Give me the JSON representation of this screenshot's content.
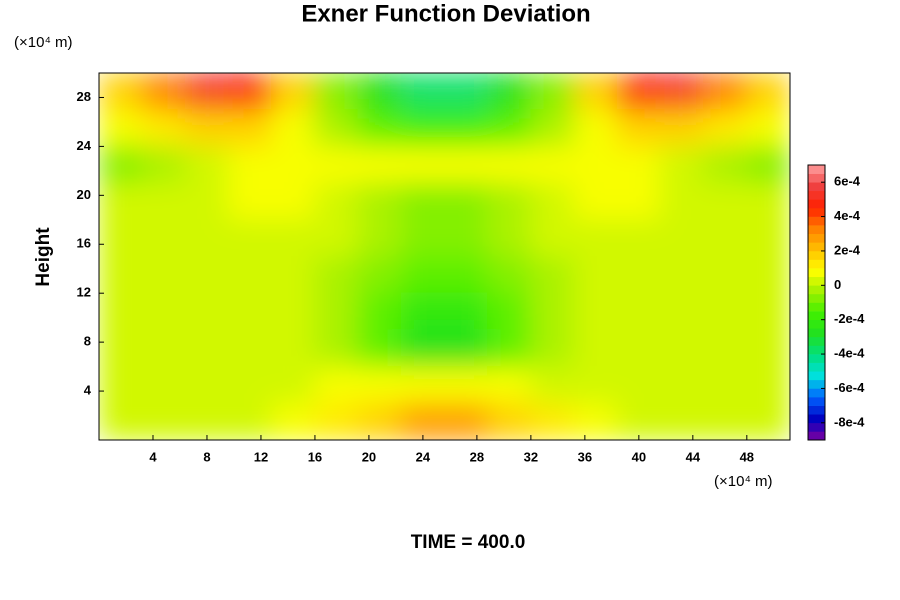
{
  "chart_data": {
    "type": "contour",
    "title": "Exner Function Deviation",
    "y_unit": "(×10⁴ m)",
    "x_unit": "(×10⁴ m)",
    "ylabel": "Height",
    "footer": "TIME = 400.0",
    "xlim": [
      0,
      51.2
    ],
    "ylim": [
      0,
      30
    ],
    "xticks": [
      4,
      8,
      12,
      16,
      20,
      24,
      28,
      32,
      36,
      40,
      44,
      48
    ],
    "yticks": [
      4,
      8,
      12,
      16,
      20,
      24,
      28
    ],
    "x": [
      1.6,
      4.8,
      8,
      11.2,
      14.4,
      17.6,
      20.8,
      24,
      27.2,
      30.4,
      33.6,
      36.8,
      40,
      43.2,
      46.4,
      49.6
    ],
    "y": [
      28.5,
      25.5,
      22.5,
      19.5,
      16.5,
      13.5,
      10.5,
      7.5,
      4.5,
      1.5
    ],
    "z": [
      [
        0.00015,
        0.0003,
        0.0005,
        0.00045,
        0.00015,
        -0.0001,
        -0.0003,
        -0.0004,
        -0.0004,
        -0.0003,
        -0.0001,
        0.00015,
        0.00045,
        0.0005,
        0.0003,
        0.00015
      ],
      [
        5e-05,
        0.0001,
        0.00015,
        0.00015,
        5e-05,
        -5e-05,
        -0.00015,
        -0.0002,
        -0.0002,
        -0.00015,
        -5e-05,
        5e-05,
        0.00015,
        0.00015,
        0.0001,
        5e-05
      ],
      [
        -0.0001,
        -5e-05,
        0,
        5e-05,
        5e-05,
        5e-05,
        8e-05,
        8e-05,
        8e-05,
        8e-05,
        5e-05,
        5e-05,
        5e-05,
        0,
        -5e-05,
        -0.0001
      ],
      [
        0,
        0,
        3e-05,
        5e-05,
        5e-05,
        0,
        -5e-05,
        -8e-05,
        -8e-05,
        -5e-05,
        0,
        5e-05,
        5e-05,
        3e-05,
        0,
        0
      ],
      [
        0,
        0,
        0,
        0,
        0,
        0,
        -3e-05,
        -6e-05,
        -6e-05,
        -3e-05,
        0,
        0,
        0,
        0,
        0,
        0
      ],
      [
        0,
        0,
        0,
        0,
        0,
        -3e-05,
        -8e-05,
        -0.00013,
        -0.00013,
        -8e-05,
        -3e-05,
        0,
        0,
        0,
        0,
        0
      ],
      [
        0,
        0,
        0,
        0,
        0,
        -5e-05,
        -0.00015,
        -0.00025,
        -0.00025,
        -0.00015,
        -5e-05,
        0,
        0,
        0,
        0,
        0
      ],
      [
        0,
        0,
        0,
        0,
        0,
        -5e-05,
        -0.00015,
        -0.0003,
        -0.0003,
        -0.00015,
        -5e-05,
        0,
        0,
        0,
        0,
        0
      ],
      [
        0,
        0,
        0,
        0,
        3e-05,
        5e-05,
        5e-05,
        5e-05,
        5e-05,
        5e-05,
        3e-05,
        0,
        0,
        0,
        0,
        0
      ],
      [
        0,
        0,
        0,
        3e-05,
        5e-05,
        0.0001,
        0.00015,
        0.00025,
        0.00025,
        0.00015,
        0.0001,
        5e-05,
        3e-05,
        0,
        0,
        0
      ]
    ],
    "clim": [
      -0.0009,
      0.0007
    ],
    "cticks": [
      {
        "value": 0.0006,
        "label": "6e-4"
      },
      {
        "value": 0.0004,
        "label": "4e-4"
      },
      {
        "value": 0.0002,
        "label": "2e-4"
      },
      0,
      {
        "value": -0.0002,
        "label": "-2e-4"
      },
      {
        "value": -0.0004,
        "label": "-4e-4"
      },
      {
        "value": -0.0006,
        "label": "-6e-4"
      },
      {
        "value": -0.0008,
        "label": "-8e-4"
      }
    ],
    "colormap": [
      "#8000a0",
      "#0000c0",
      "#0060ff",
      "#00e0e0",
      "#00e080",
      "#20e020",
      "#40f000",
      "#a0f000",
      "#ffff00",
      "#ffc000",
      "#ff8000",
      "#ff2000",
      "#f04040",
      "#ffa0a0"
    ]
  }
}
